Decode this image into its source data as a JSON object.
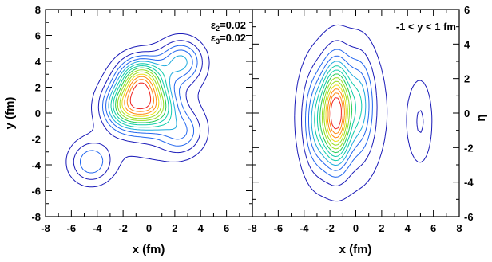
{
  "chart_data": [
    {
      "type": "contour",
      "xlabel": "x (fm)",
      "ylabel": "y (fm)",
      "xlim": [
        -8,
        8
      ],
      "ylim": [
        -8,
        8
      ],
      "xticks": [
        "-8",
        "-6",
        "-4",
        "-2",
        "0",
        "2",
        "4",
        "6"
      ],
      "yticks": [
        "-8",
        "-6",
        "-4",
        "-2",
        "0",
        "2",
        "4",
        "6",
        "8"
      ],
      "annotations": [
        {
          "symbol": "ε",
          "sub": "2",
          "value": "=0.02"
        },
        {
          "symbol": "ε",
          "sub": "3",
          "value": "=0.02"
        }
      ],
      "hotspots": [
        {
          "x": -0.6,
          "y": 2.5,
          "w": 1.6
        },
        {
          "x": -1.7,
          "y": 0.5,
          "w": 1.3
        },
        {
          "x": 0.3,
          "y": 0.5,
          "w": 1.2
        },
        {
          "x": 2.5,
          "y": 4.0,
          "w": 0.8
        },
        {
          "x": -4.5,
          "y": -3.8,
          "w": 0.6
        },
        {
          "x": 2.5,
          "y": -1.5,
          "w": 0.5
        }
      ],
      "grid": false
    },
    {
      "type": "contour",
      "xlabel": "x (fm)",
      "ylabel": "η",
      "xlim": [
        -8,
        8
      ],
      "ylim": [
        -6,
        6
      ],
      "xticks": [
        "-8",
        "-6",
        "-4",
        "-2",
        "0",
        "2",
        "4",
        "6",
        "8"
      ],
      "yticks": [
        "-6",
        "-4",
        "-2",
        "0",
        "2",
        "4",
        "6"
      ],
      "annotation": "-1 < y < 1 fm",
      "hotspots": [
        {
          "x": -1.5,
          "y": 0.0,
          "w": 2.0
        },
        {
          "x": -3.0,
          "y": -0.5,
          "w": 0.6
        },
        {
          "x": 0.3,
          "y": 0.5,
          "w": 0.6
        },
        {
          "x": 5.0,
          "y": -0.5,
          "w": 0.3
        }
      ],
      "grid": false
    }
  ],
  "contour_colors": [
    "#1a1ab8",
    "#2266ee",
    "#1eaadd",
    "#10ccaa",
    "#22cc55",
    "#99dd22",
    "#eedd11",
    "#ff8811",
    "#ee2222"
  ]
}
